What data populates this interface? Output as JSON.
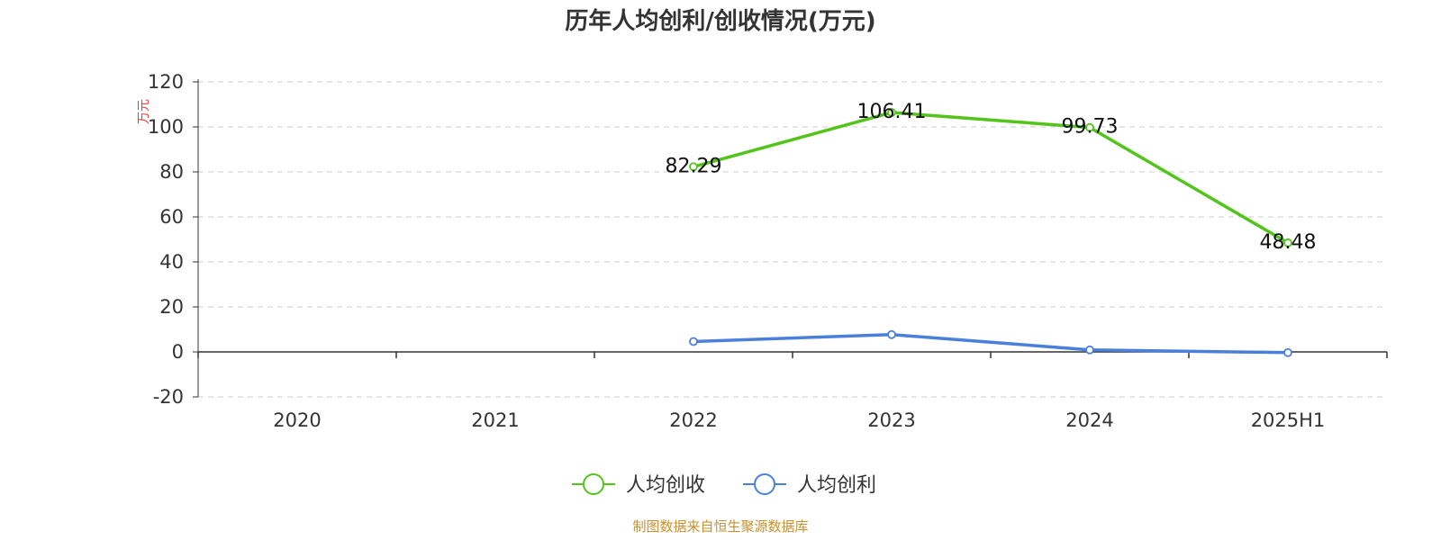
{
  "chart_data": {
    "type": "line",
    "title": "历年人均创利/创收情况(万元)",
    "ylabel": "万元",
    "categories": [
      "2020",
      "2021",
      "2022",
      "2023",
      "2024",
      "2025H1"
    ],
    "ylim": [
      -20,
      120
    ],
    "yticks": [
      120,
      100,
      80,
      60,
      40,
      20,
      0,
      -20
    ],
    "grid": true,
    "legend_position": "bottom",
    "series": [
      {
        "name": "人均创收",
        "color": "#52c41a",
        "show_labels": true,
        "values": [
          null,
          null,
          82.29,
          106.41,
          99.73,
          48.48
        ]
      },
      {
        "name": "人均创利",
        "color": "#4a7fdc",
        "show_labels": false,
        "values": [
          null,
          null,
          4.6,
          7.7,
          0.9,
          -0.3
        ]
      }
    ]
  },
  "source": "制图数据来自恒生聚源数据库",
  "colors": {
    "ylabel": "#e8413a",
    "source": "#c8902c",
    "axis": "#333333",
    "grid": "#cccccc"
  }
}
